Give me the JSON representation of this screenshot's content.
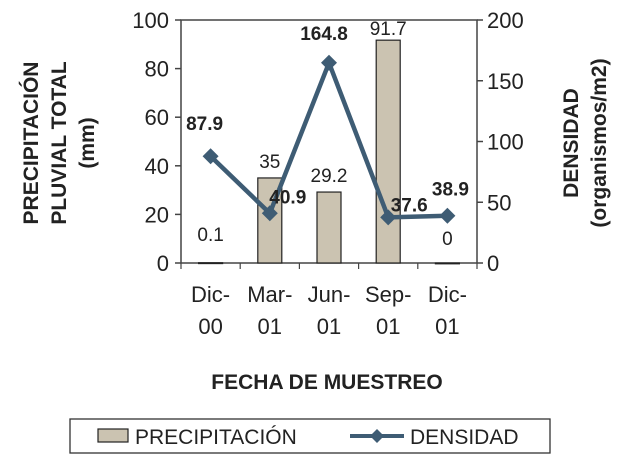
{
  "chart_data": {
    "type": "bar",
    "categories": [
      [
        "Dic-",
        "00"
      ],
      [
        "Mar-",
        "01"
      ],
      [
        "Jun-",
        "01"
      ],
      [
        "Sep-",
        "01"
      ],
      [
        "Dic-",
        "01"
      ]
    ],
    "series": [
      {
        "name": "PRECIPITACIÓN",
        "type": "bar",
        "axis": "left",
        "values": [
          0.1,
          35,
          29.2,
          91.7,
          0
        ],
        "labels": [
          "0.1",
          "35",
          "29.2",
          "91.7",
          "0"
        ],
        "color": "#cbc3b1"
      },
      {
        "name": "DENSIDAD",
        "type": "line",
        "axis": "right",
        "values": [
          87.9,
          40.9,
          164.8,
          37.6,
          38.9
        ],
        "labels": [
          "87.9",
          "40.9",
          "164.8",
          "37.6",
          "38.9"
        ],
        "color": "#3e5c74"
      }
    ],
    "ylabel_left": [
      "PRECIPITACIÓN",
      "PLUVIAL  TOTAL",
      "(mm)"
    ],
    "ylabel_right": [
      "DENSIDAD",
      "(organismos/m2)"
    ],
    "xlabel": "FECHA DE MUESTREO",
    "ylim_left": [
      0,
      100
    ],
    "yticks_left": [
      0,
      20,
      40,
      60,
      80,
      100
    ],
    "ylim_right": [
      0,
      200
    ],
    "yticks_right": [
      0,
      50,
      100,
      150,
      200
    ],
    "legend_position": "bottom",
    "grid": false
  }
}
